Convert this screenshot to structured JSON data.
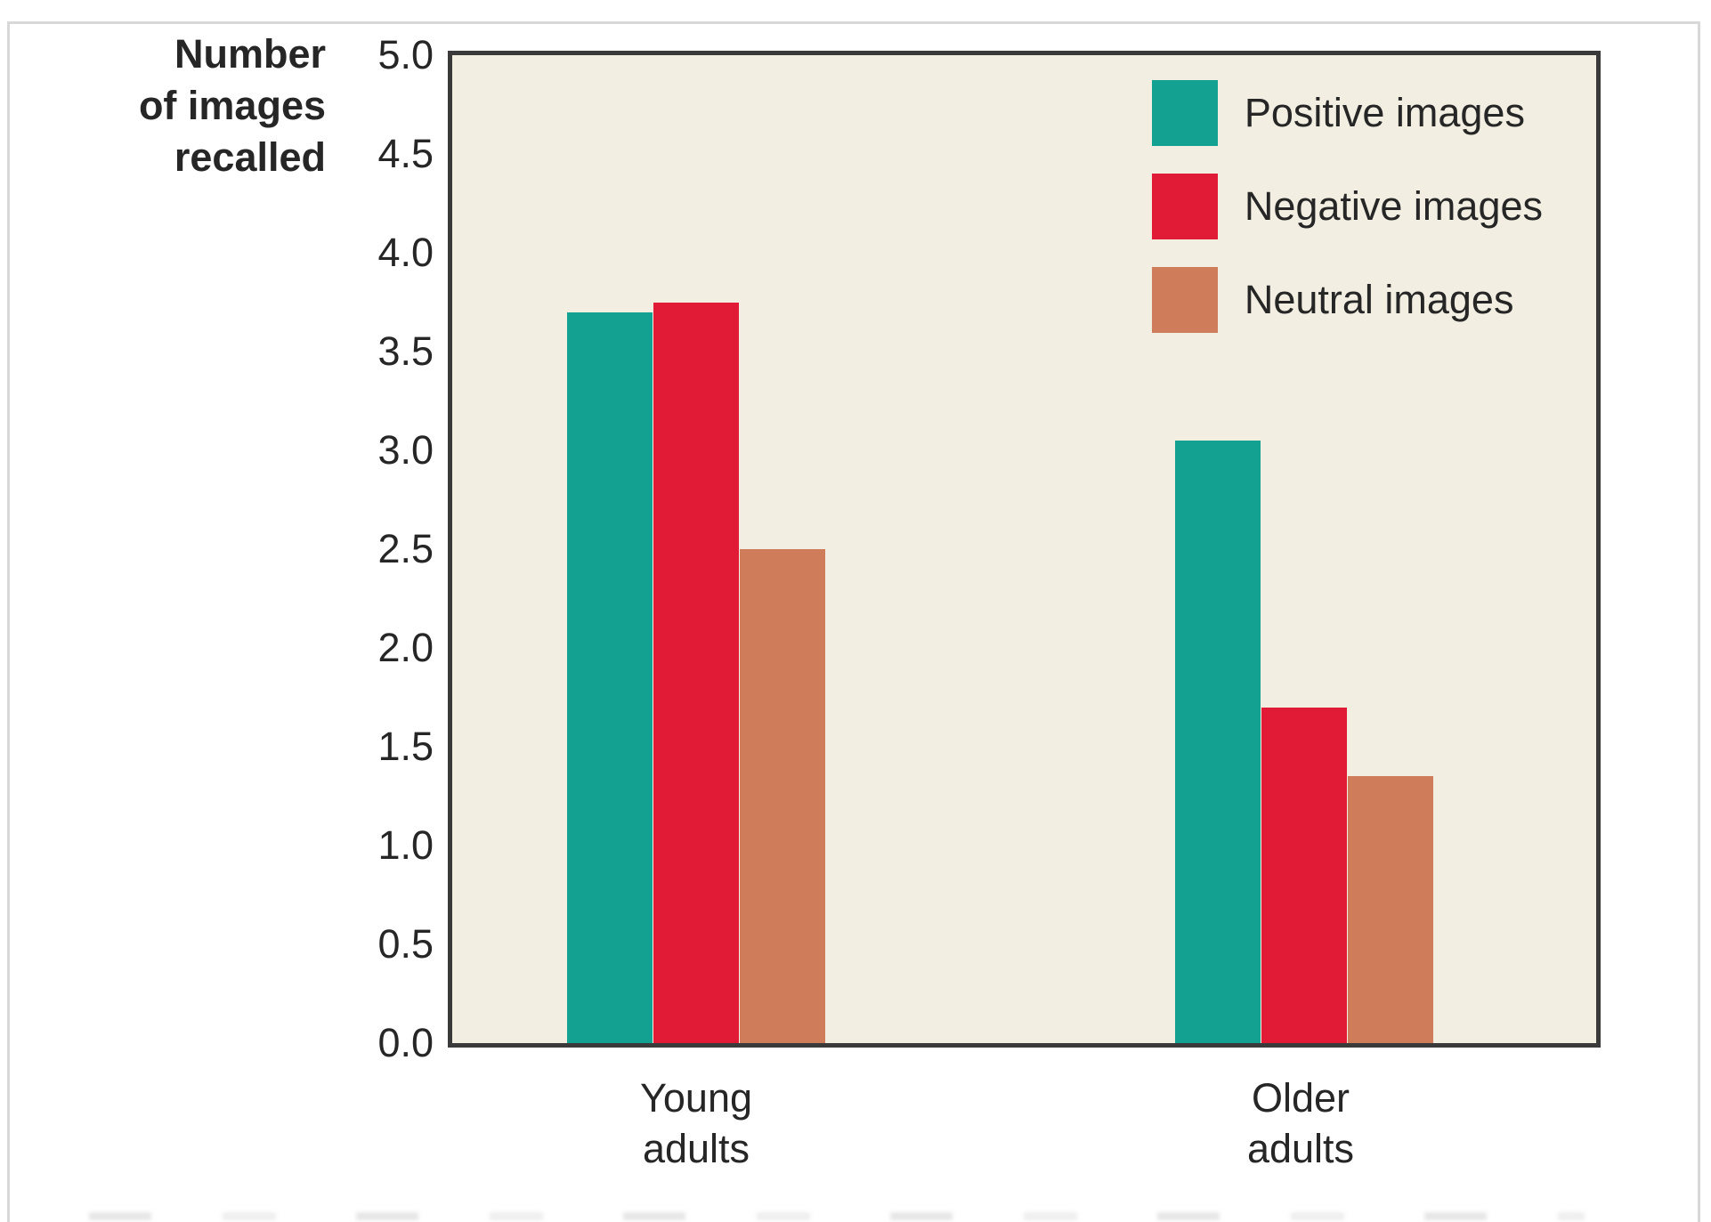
{
  "figure": {
    "background_color": "#ffffff",
    "plot_background_color": "#f2efe2",
    "plot_border_color": "#3a3a3a",
    "frame_color": "#d8d8d8",
    "text_color": "#262626"
  },
  "chart_data": {
    "type": "bar",
    "title": "",
    "ylabel": "Number of images recalled",
    "ylabel_lines": [
      "Number",
      "of images",
      "recalled"
    ],
    "ylim": [
      0.0,
      5.0
    ],
    "ytick_step": 0.5,
    "yticks": [
      "5.0",
      "4.5",
      "4.0",
      "3.5",
      "3.0",
      "2.5",
      "2.0",
      "1.5",
      "1.0",
      "0.5",
      "0.0"
    ],
    "grid": false,
    "legend_position": "top-right",
    "categories": [
      "Young adults",
      "Older adults"
    ],
    "category_label_lines": [
      [
        "Young",
        "adults"
      ],
      [
        "Older",
        "adults"
      ]
    ],
    "series": [
      {
        "name": "Positive images",
        "color": "#13a191",
        "values": [
          3.7,
          3.05
        ]
      },
      {
        "name": "Negative images",
        "color": "#e11b35",
        "values": [
          3.75,
          1.7
        ]
      },
      {
        "name": "Neutral images",
        "color": "#cf7c5a",
        "values": [
          2.5,
          1.35
        ]
      }
    ]
  }
}
